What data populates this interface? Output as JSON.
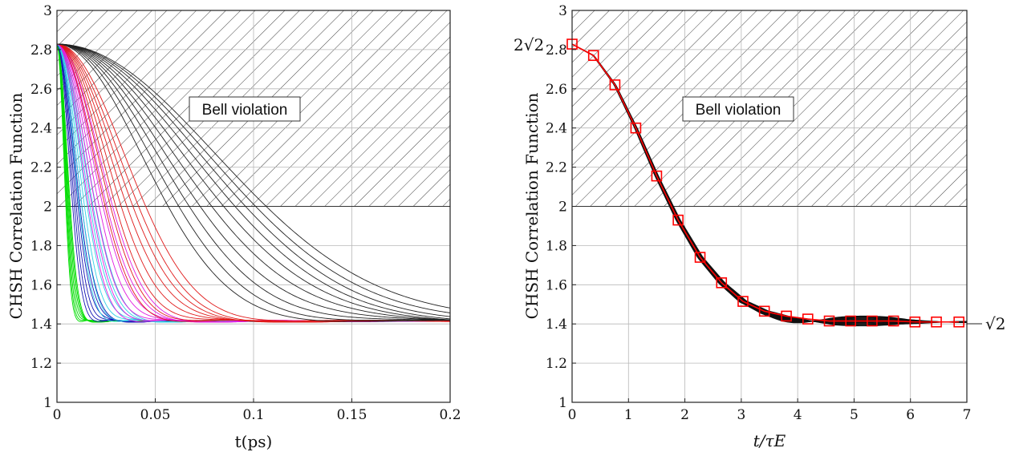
{
  "chart_data": [
    {
      "type": "line",
      "xlabel": "t(ps)",
      "ylabel": "CHSH Correlation Function",
      "xlim": [
        0,
        0.2
      ],
      "ylim": [
        1,
        3
      ],
      "xticks": [
        "0",
        "0.05",
        "0.1",
        "0.15",
        "0.2"
      ],
      "yticks": [
        "1",
        "1.2",
        "1.4",
        "1.6",
        "1.8",
        "2",
        "2.2",
        "2.4",
        "2.6",
        "2.8",
        "3"
      ],
      "grid": true,
      "shaded_region": {
        "y_from": 2,
        "y_to": 3,
        "pattern": "hatch",
        "label": "Bell violation"
      },
      "start_value": 2.828,
      "asymptote": 1.414,
      "curve_groups": [
        {
          "color": "#00dd00",
          "decay_times_ps": [
            0.0048,
            0.0052,
            0.0056,
            0.006,
            0.0064,
            0.0068,
            0.0072
          ]
        },
        {
          "color": "#1515b5",
          "decay_times_ps": [
            0.0085,
            0.0095,
            0.0105,
            0.0115,
            0.0125,
            0.0135
          ]
        },
        {
          "color": "#2fd0e6",
          "decay_times_ps": [
            0.012,
            0.0135,
            0.015,
            0.0165,
            0.018,
            0.0195,
            0.021
          ]
        },
        {
          "color": "#e01be0",
          "decay_times_ps": [
            0.017,
            0.019,
            0.021,
            0.023,
            0.025,
            0.027,
            0.03
          ]
        },
        {
          "color": "#e01a1a",
          "decay_times_ps": [
            0.026,
            0.029,
            0.032,
            0.035,
            0.038,
            0.041,
            0.044,
            0.048
          ]
        },
        {
          "color": "#222222",
          "decay_times_ps": [
            0.06,
            0.066,
            0.072,
            0.078,
            0.084,
            0.09,
            0.096,
            0.102,
            0.108,
            0.114
          ]
        }
      ]
    },
    {
      "type": "line",
      "xlabel": "t/τE",
      "ylabel": "CHSH Correlation Function",
      "xlim": [
        0,
        7
      ],
      "ylim": [
        1,
        3
      ],
      "xticks": [
        "0",
        "1",
        "2",
        "3",
        "4",
        "5",
        "6",
        "7"
      ],
      "yticks": [
        "1",
        "1.2",
        "1.4",
        "1.6",
        "1.8",
        "2",
        "2.2",
        "2.4",
        "2.6",
        "2.8",
        "3"
      ],
      "grid": true,
      "shaded_region": {
        "y_from": 2,
        "y_to": 3,
        "pattern": "hatch",
        "label": "Bell violation"
      },
      "left_label": "2√2",
      "right_label": "√2",
      "collapsed_curves": {
        "color": "#111111",
        "count": 14
      },
      "series": [
        {
          "color": "#ff0000",
          "marker": "square",
          "x": [
            0.0,
            0.38,
            0.76,
            1.13,
            1.5,
            1.88,
            2.27,
            2.65,
            3.03,
            3.41,
            3.8,
            4.18,
            4.56,
            4.94,
            5.32,
            5.7,
            6.08,
            6.46,
            6.86
          ],
          "y": [
            2.828,
            2.77,
            2.62,
            2.4,
            2.155,
            1.93,
            1.74,
            1.61,
            1.515,
            1.465,
            1.44,
            1.425,
            1.415,
            1.415,
            1.415,
            1.415,
            1.41,
            1.41,
            1.41
          ]
        }
      ]
    }
  ]
}
